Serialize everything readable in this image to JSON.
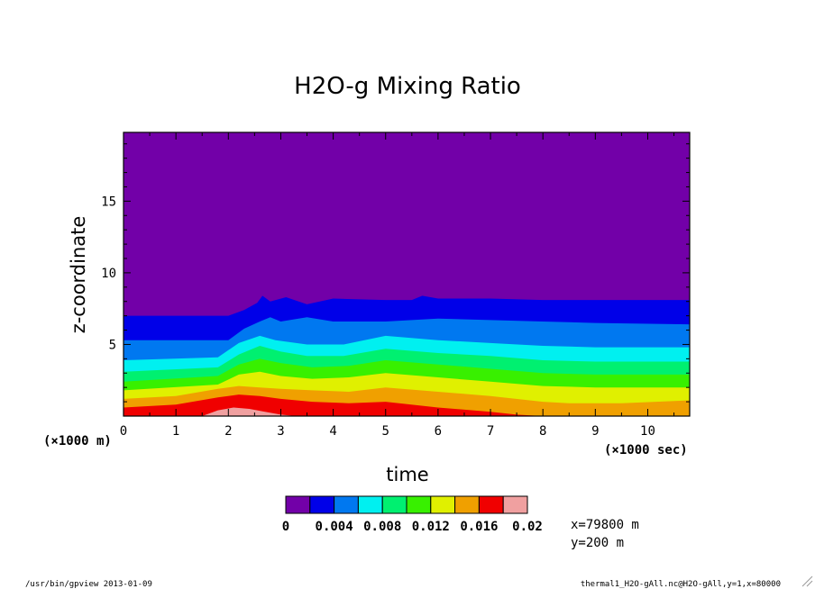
{
  "chart_data": {
    "type": "heatmap",
    "title": "H2O-g Mixing Ratio",
    "xlabel": "time",
    "ylabel": "z-coordinate",
    "x_multiplier_label": "(×1000 sec)",
    "y_multiplier_label": "(×1000 m)",
    "xlim": [
      0,
      10.8
    ],
    "ylim": [
      0,
      19.8
    ],
    "x_ticks": [
      "0",
      "1",
      "2",
      "3",
      "4",
      "5",
      "6",
      "7",
      "8",
      "9",
      "10"
    ],
    "y_ticks": [
      "5",
      "10",
      "15"
    ],
    "colorbar": {
      "levels": [
        0,
        0.002,
        0.004,
        0.006,
        0.008,
        0.01,
        0.012,
        0.014,
        0.016,
        0.018,
        0.02
      ],
      "labels": [
        "0",
        "0.004",
        "0.008",
        "0.012",
        "0.016",
        "0.02"
      ],
      "colors": [
        "#7200a8",
        "#0000e8",
        "#0078f0",
        "#00f0f0",
        "#00f070",
        "#38f000",
        "#e0f000",
        "#f0a000",
        "#f00000",
        "#f0a0a0"
      ]
    },
    "contours": [
      {
        "level": 0.002,
        "x": [
          0,
          2.0,
          2.3,
          2.55,
          2.65,
          2.8,
          3.1,
          3.5,
          4.0,
          5.0,
          5.5,
          5.7,
          6.0,
          7.0,
          8.0,
          9.0,
          10.8
        ],
        "z": [
          7.0,
          7.0,
          7.4,
          7.9,
          8.4,
          8.0,
          8.3,
          7.8,
          8.2,
          8.1,
          8.1,
          8.4,
          8.2,
          8.2,
          8.1,
          8.1,
          8.1
        ]
      },
      {
        "level": 0.004,
        "x": [
          0,
          2.0,
          2.3,
          2.6,
          2.8,
          3.0,
          3.5,
          4.0,
          5.0,
          6.0,
          7.0,
          8.0,
          9.0,
          10.8
        ],
        "z": [
          5.3,
          5.3,
          6.1,
          6.6,
          6.9,
          6.6,
          6.9,
          6.6,
          6.6,
          6.8,
          6.7,
          6.6,
          6.5,
          6.4
        ]
      },
      {
        "level": 0.006,
        "x": [
          0,
          1.8,
          2.2,
          2.6,
          2.9,
          3.5,
          4.2,
          5.0,
          6.0,
          7.0,
          8.0,
          9.0,
          10.8
        ],
        "z": [
          3.9,
          4.1,
          5.1,
          5.6,
          5.3,
          5.0,
          5.0,
          5.6,
          5.3,
          5.1,
          4.9,
          4.8,
          4.8
        ]
      },
      {
        "level": 0.008,
        "x": [
          0,
          1.8,
          2.2,
          2.6,
          3.0,
          3.5,
          4.2,
          5.0,
          6.0,
          7.0,
          8.0,
          9.0,
          10.8
        ],
        "z": [
          3.1,
          3.4,
          4.3,
          4.9,
          4.5,
          4.2,
          4.2,
          4.7,
          4.4,
          4.2,
          3.9,
          3.8,
          3.8
        ]
      },
      {
        "level": 0.01,
        "x": [
          0,
          1.8,
          2.2,
          2.6,
          3.0,
          3.6,
          4.3,
          5.0,
          6.0,
          7.0,
          8.0,
          9.0,
          10.8
        ],
        "z": [
          2.4,
          2.8,
          3.6,
          4.0,
          3.7,
          3.4,
          3.5,
          3.9,
          3.6,
          3.3,
          3.0,
          2.9,
          2.9
        ]
      },
      {
        "level": 0.012,
        "x": [
          0,
          1.8,
          2.2,
          2.6,
          3.0,
          3.6,
          4.3,
          5.0,
          6.0,
          7.0,
          8.0,
          9.0,
          10.8
        ],
        "z": [
          1.8,
          2.2,
          2.9,
          3.1,
          2.8,
          2.6,
          2.7,
          3.0,
          2.7,
          2.4,
          2.1,
          2.0,
          2.0
        ]
      },
      {
        "level": 0.014,
        "x": [
          0,
          1.0,
          1.8,
          2.2,
          2.6,
          3.0,
          3.6,
          4.3,
          5.0,
          6.0,
          7.0,
          8.0,
          8.5,
          9.5,
          10.8
        ],
        "z": [
          1.2,
          1.4,
          1.9,
          2.1,
          2.0,
          1.9,
          1.8,
          1.7,
          2.0,
          1.7,
          1.4,
          1.0,
          0.9,
          0.9,
          1.1
        ]
      },
      {
        "level": 0.016,
        "x": [
          0,
          1.0,
          1.8,
          2.2,
          2.6,
          3.0,
          3.6,
          4.3,
          5.0,
          6.0,
          7.0,
          7.5,
          8.0,
          10.8
        ],
        "z": [
          0.6,
          0.8,
          1.3,
          1.5,
          1.4,
          1.2,
          1.0,
          0.9,
          1.0,
          0.6,
          0.3,
          0.1,
          0.0,
          0.0
        ]
      },
      {
        "level": 0.018,
        "x": [
          0,
          1.5,
          1.8,
          2.1,
          2.4,
          2.7,
          3.0,
          3.3,
          10.8
        ],
        "z": [
          0.0,
          0.0,
          0.4,
          0.6,
          0.5,
          0.3,
          0.1,
          0.0,
          0.0
        ]
      }
    ],
    "info_lines": [
      "x=79800 m",
      "y=200 m"
    ],
    "footer_left": "/usr/bin/gpview  2013-01-09",
    "footer_right": "thermal1_H2O-gAll.nc@H2O-gAll,y=1,x=80000"
  }
}
